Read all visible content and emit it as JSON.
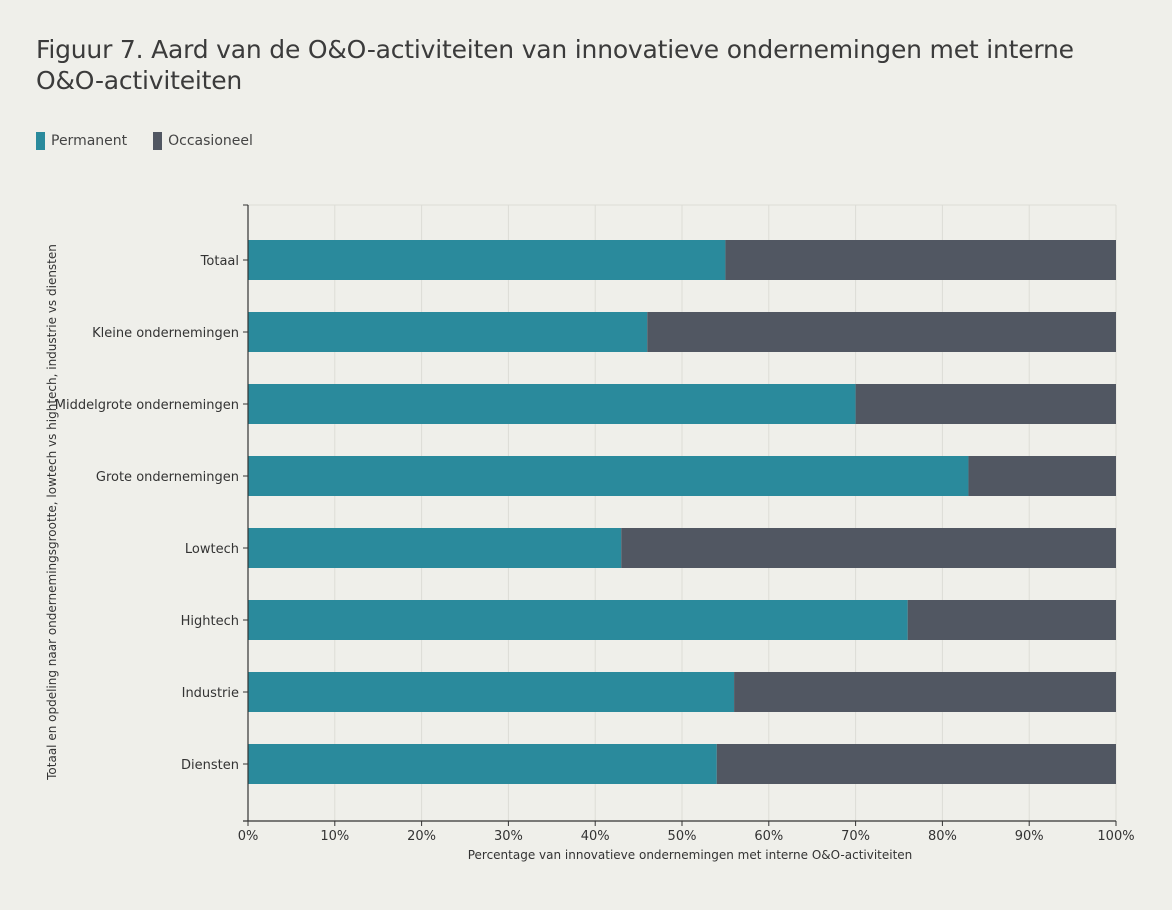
{
  "title": "Figuur 7. Aard van de O&O-activiteiten van innovatieve ondernemingen met interne O&O-activiteiten",
  "legend": [
    {
      "label": "Permanent",
      "color": "#2a8a9c"
    },
    {
      "label": "Occasioneel",
      "color": "#515762"
    }
  ],
  "chart_data": {
    "type": "bar",
    "orientation": "horizontal",
    "stacked": true,
    "title": "Figuur 7. Aard van de O&O-activiteiten van innovatieve ondernemingen met interne O&O-activiteiten",
    "xlabel": "Percentage van innovatieve ondernemingen met interne O&O-activiteiten",
    "ylabel": "Totaal en opdeling naar ondernemingsgrootte, lowtech vs hightech, industrie vs diensten",
    "xlim": [
      0,
      100
    ],
    "x_ticks": [
      "0%",
      "10%",
      "20%",
      "30%",
      "40%",
      "50%",
      "60%",
      "70%",
      "80%",
      "90%",
      "100%"
    ],
    "grid": "vertical",
    "legend_position": "top-left",
    "categories": [
      "Totaal",
      "Kleine ondernemingen",
      "Middelgrote ondernemingen",
      "Grote ondernemingen",
      "Lowtech",
      "Hightech",
      "Industrie",
      "Diensten"
    ],
    "series": [
      {
        "name": "Permanent",
        "color": "#2a8a9c",
        "values": [
          55,
          46,
          70,
          83,
          43,
          76,
          56,
          54
        ]
      },
      {
        "name": "Occasioneel",
        "color": "#515762",
        "values": [
          45,
          54,
          30,
          17,
          57,
          24,
          44,
          46
        ]
      }
    ]
  }
}
